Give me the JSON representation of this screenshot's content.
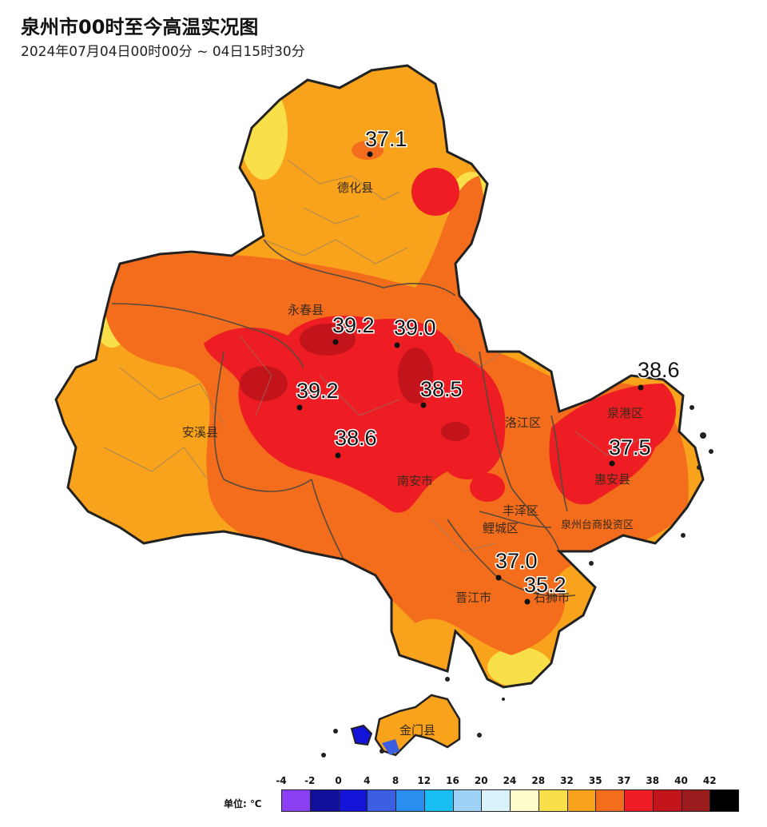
{
  "title": "泉州市00时至今高温实况图",
  "subtitle": "2024年07月04日00时00分 ~ 04日15时30分",
  "colors": {
    "bg": "#ffffff",
    "land_low": "#f9e04b",
    "land_35": "#f8a31b",
    "land_37": "#f46d1c",
    "land_38": "#ee1d23",
    "land_40": "#c3141b",
    "border": "#222222"
  },
  "counties": [
    {
      "name": "德化县"
    },
    {
      "name": "永春县"
    },
    {
      "name": "安溪县"
    },
    {
      "name": "南安市"
    },
    {
      "name": "洛江区"
    },
    {
      "name": "泉港区"
    },
    {
      "name": "惠安县"
    },
    {
      "name": "丰泽区"
    },
    {
      "name": "鲤城区"
    },
    {
      "name": "泉州台商投资区"
    },
    {
      "name": "晋江市"
    },
    {
      "name": "石狮市"
    },
    {
      "name": "金门县"
    }
  ],
  "stations": [
    {
      "value": "37.1"
    },
    {
      "value": "39.2"
    },
    {
      "value": "39.0"
    },
    {
      "value": "39.2"
    },
    {
      "value": "38.5"
    },
    {
      "value": "38.6"
    },
    {
      "value": "38.6"
    },
    {
      "value": "37.5"
    },
    {
      "value": "37.0"
    },
    {
      "value": "35.2"
    }
  ],
  "legend": {
    "unit": "单位: ℃",
    "ticks": [
      "-4",
      "-2",
      "0",
      "4",
      "8",
      "12",
      "16",
      "20",
      "24",
      "28",
      "32",
      "35",
      "37",
      "38",
      "40",
      "42"
    ],
    "colors": [
      "#8a3ff2",
      "#10109c",
      "#1414d8",
      "#3b5fe0",
      "#2a8df0",
      "#19bff2",
      "#9fd2f7",
      "#d9f2fb",
      "#fffccc",
      "#f9e04b",
      "#f8a31b",
      "#f46d1c",
      "#ee1d23",
      "#c3141b",
      "#9b1c1c",
      "#000000"
    ]
  }
}
